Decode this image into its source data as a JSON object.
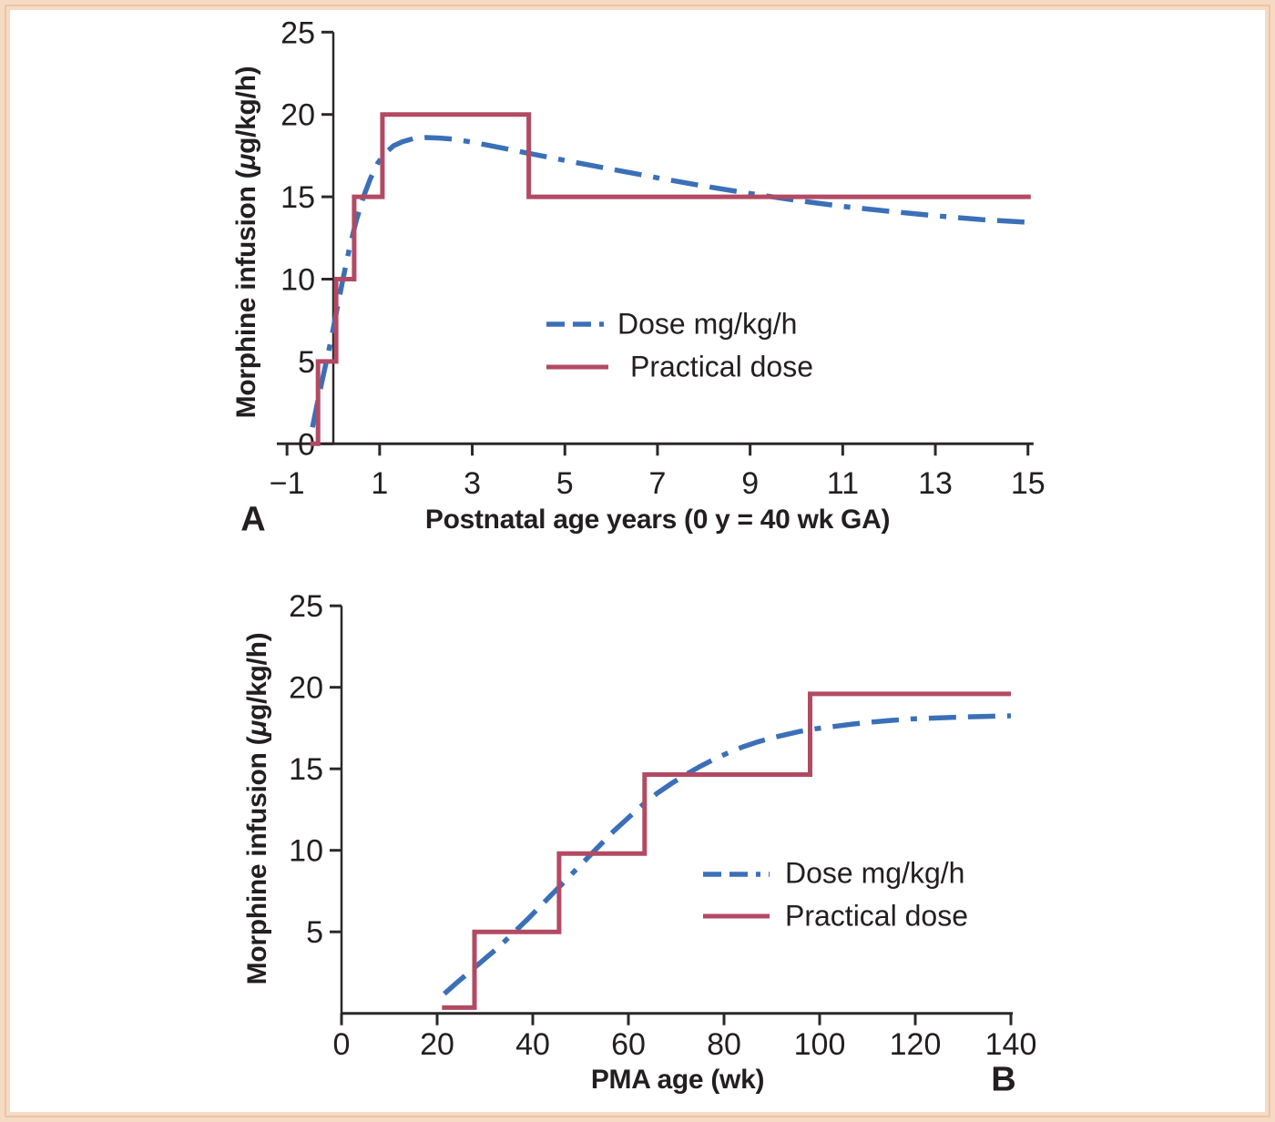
{
  "figure": {
    "background": "#ffffff",
    "frame_color": "#f6dac4",
    "frame_line_color": "#eac7a8",
    "axis_color": "#2b2828",
    "text_color": "#231f20",
    "accent_blue": "#3b70b8",
    "accent_red": "#b24a63"
  },
  "chart_data": [
    {
      "panel_label": "A",
      "type": "line",
      "title": "",
      "xlabel": "Postnatal age years (0 y = 40 wk GA)",
      "ylabel": "Morphine infusion (μg/kg/h)",
      "ylabel_parts": {
        "pre": "Morphine infusion (",
        "mu": "μ",
        "post": "g/kg/h)"
      },
      "xlim": [
        -1.3,
        15.1
      ],
      "ylim": [
        0,
        25
      ],
      "x_ticks": [
        -1,
        1,
        3,
        5,
        7,
        9,
        11,
        13,
        15
      ],
      "y_ticks": [
        0,
        5,
        10,
        15,
        20,
        25
      ],
      "grid": false,
      "legend_position": "inside-center-right",
      "series": [
        {
          "name": "Dose mg/kg/h",
          "style": "dashed",
          "color": "#3b70b8",
          "points": [
            [
              -0.45,
              1.0
            ],
            [
              -0.32,
              2.8
            ],
            [
              -0.18,
              4.6
            ],
            [
              -0.05,
              6.3
            ],
            [
              0.08,
              8.2
            ],
            [
              0.2,
              9.9
            ],
            [
              0.35,
              11.9
            ],
            [
              0.5,
              13.6
            ],
            [
              0.65,
              15.0
            ],
            [
              0.8,
              16.1
            ],
            [
              0.95,
              17.0
            ],
            [
              1.1,
              17.6
            ],
            [
              1.3,
              18.1
            ],
            [
              1.5,
              18.35
            ],
            [
              1.75,
              18.55
            ],
            [
              2.0,
              18.6
            ],
            [
              2.3,
              18.57
            ],
            [
              2.6,
              18.5
            ],
            [
              3.0,
              18.32
            ],
            [
              3.4,
              18.1
            ],
            [
              3.8,
              17.88
            ],
            [
              4.2,
              17.65
            ],
            [
              4.7,
              17.38
            ],
            [
              5.2,
              17.1
            ],
            [
              6.0,
              16.68
            ],
            [
              7.0,
              16.15
            ],
            [
              8.0,
              15.65
            ],
            [
              9.0,
              15.2
            ],
            [
              10.0,
              14.78
            ],
            [
              11.0,
              14.42
            ],
            [
              12.0,
              14.12
            ],
            [
              13.0,
              13.85
            ],
            [
              14.0,
              13.62
            ],
            [
              15.0,
              13.45
            ]
          ]
        },
        {
          "name": "Practical dose",
          "style": "solid",
          "color": "#b24a63",
          "points": [
            [
              -0.5,
              0
            ],
            [
              -0.33,
              0
            ],
            [
              -0.33,
              5
            ],
            [
              0.06,
              5
            ],
            [
              0.06,
              10
            ],
            [
              0.45,
              10
            ],
            [
              0.45,
              15
            ],
            [
              1.06,
              15
            ],
            [
              1.06,
              20
            ],
            [
              4.22,
              20
            ],
            [
              4.22,
              15
            ],
            [
              15.06,
              15
            ]
          ]
        }
      ]
    },
    {
      "panel_label": "B",
      "type": "line",
      "title": "",
      "xlabel": "PMA age (wk)",
      "ylabel": "Morphine infusion (μg/kg/h)",
      "ylabel_parts": {
        "pre": "Morphine infusion (",
        "mu": "μ",
        "post": "g/kg/h)"
      },
      "xlim": [
        0,
        140.5
      ],
      "ylim": [
        0,
        25
      ],
      "x_ticks": [
        0,
        20,
        40,
        60,
        80,
        100,
        120,
        140
      ],
      "y_ticks": [
        5,
        10,
        15,
        20,
        25
      ],
      "grid": false,
      "legend_position": "inside-center-right",
      "series": [
        {
          "name": "Dose mg/kg/h",
          "style": "dashed",
          "color": "#3b70b8",
          "points": [
            [
              21.5,
              1.2
            ],
            [
              24,
              1.85
            ],
            [
              27,
              2.6
            ],
            [
              30,
              3.35
            ],
            [
              33,
              4.1
            ],
            [
              36,
              4.95
            ],
            [
              39,
              5.8
            ],
            [
              42,
              6.7
            ],
            [
              45,
              7.6
            ],
            [
              48,
              8.5
            ],
            [
              51,
              9.4
            ],
            [
              54,
              10.3
            ],
            [
              57,
              11.2
            ],
            [
              60,
              12.0
            ],
            [
              63,
              12.8
            ],
            [
              66,
              13.5
            ],
            [
              69,
              14.1
            ],
            [
              72,
              14.65
            ],
            [
              75,
              15.15
            ],
            [
              78,
              15.6
            ],
            [
              81,
              16.0
            ],
            [
              84,
              16.35
            ],
            [
              87,
              16.65
            ],
            [
              90,
              16.9
            ],
            [
              93,
              17.1
            ],
            [
              96,
              17.3
            ],
            [
              99,
              17.45
            ],
            [
              103,
              17.6
            ],
            [
              107,
              17.75
            ],
            [
              111,
              17.87
            ],
            [
              115,
              17.97
            ],
            [
              120,
              18.07
            ],
            [
              125,
              18.13
            ],
            [
              130,
              18.18
            ],
            [
              135,
              18.22
            ],
            [
              140,
              18.25
            ]
          ]
        },
        {
          "name": "Practical dose",
          "style": "solid",
          "color": "#b24a63",
          "points": [
            [
              21,
              0.35
            ],
            [
              27.8,
              0.35
            ],
            [
              27.8,
              5
            ],
            [
              45.5,
              5
            ],
            [
              45.5,
              9.8
            ],
            [
              63.4,
              9.8
            ],
            [
              63.4,
              14.65
            ],
            [
              98,
              14.65
            ],
            [
              98,
              19.6
            ],
            [
              140,
              19.6
            ]
          ]
        }
      ]
    }
  ]
}
